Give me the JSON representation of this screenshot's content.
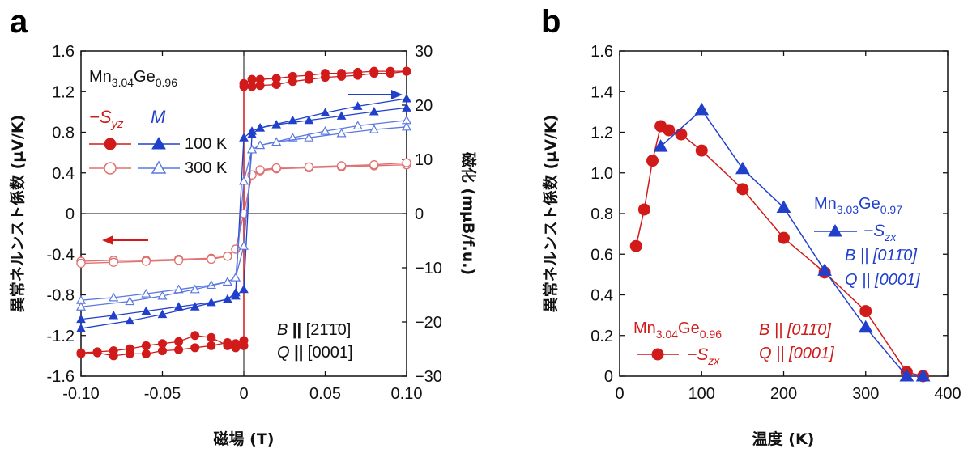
{
  "panel_a": {
    "label": "a",
    "sample": {
      "base1": "Mn",
      "sub1": "3.04",
      "base2": "Ge",
      "sub2": "0.96"
    },
    "legend": {
      "s_symbol": "−S",
      "s_sub": "yz",
      "m_symbol": "M",
      "row1": "100 K",
      "row2": "300 K"
    },
    "condition": {
      "b_sym": "B",
      "b_par": "||",
      "b_dir": "[2",
      "b_mid": "1̄1̄",
      "b_end": "0]",
      "q_sym": "Q",
      "q_par": "||",
      "q_dir": "[0001]"
    },
    "xlabel": "磁場 (T)",
    "ylabel_left": "異常ネルンスト係数 (µV/K)",
    "ylabel_right": "磁化 (mµB/f.u.)",
    "colors": {
      "red": "#d11a1a",
      "red_open": "#e07070",
      "blue": "#2040cc",
      "blue_open": "#5a78e0"
    }
  },
  "panel_b": {
    "label": "b",
    "xlabel": "温度 (K)",
    "ylabel": "異常ネルンスト係数 (µV/K)",
    "blue_sample": {
      "base1": "Mn",
      "sub1": "3.03",
      "base2": "Ge",
      "sub2": "0.97"
    },
    "blue_series": {
      "s_symbol": "−S",
      "s_sub": "zx"
    },
    "blue_cond": {
      "b_line": "B || [011̄0]",
      "q_line": "Q || [0001]"
    },
    "red_sample": {
      "base1": "Mn",
      "sub1": "3.04",
      "base2": "Ge",
      "sub2": "0.96"
    },
    "red_series": {
      "s_symbol": "−S",
      "s_sub": "zx"
    },
    "red_cond": {
      "b_line": "B || [011̄0]",
      "q_line": "Q || [0001]"
    }
  },
  "chart_data": [
    {
      "type": "line",
      "panel": "a",
      "x_ticks": [
        "-0.10",
        "-0.05",
        "0",
        "0.05",
        "0.10"
      ],
      "y_left_ticks": [
        "-1.6",
        "-1.2",
        "-0.8",
        "-0.4",
        "0",
        "0.4",
        "0.8",
        "1.2",
        "1.6"
      ],
      "y_right_ticks": [
        "-30",
        "-20",
        "-10",
        "0",
        "10",
        "20",
        "30"
      ],
      "xlim": [
        -0.1,
        0.1
      ],
      "ylim_left": [
        -1.6,
        1.6
      ],
      "ylim_right": [
        -30,
        30
      ],
      "series": [
        {
          "name": "100 K",
          "axis": "left",
          "marker": "filled-circle",
          "branch1": {
            "x": [
              -0.1,
              -0.09,
              -0.08,
              -0.07,
              -0.06,
              -0.05,
              -0.04,
              -0.03,
              -0.02,
              -0.01,
              -0.005,
              0.0,
              0.0,
              0.005,
              0.01,
              0.02,
              0.03,
              0.04,
              0.05,
              0.06,
              0.07,
              0.08,
              0.09,
              0.1
            ],
            "y": [
              -1.38,
              -1.37,
              -1.4,
              -1.38,
              -1.38,
              -1.35,
              -1.34,
              -1.32,
              -1.3,
              -1.27,
              -1.28,
              -1.25,
              1.28,
              1.32,
              1.32,
              1.33,
              1.35,
              1.36,
              1.38,
              1.38,
              1.39,
              1.4,
              1.4,
              1.4
            ]
          },
          "branch2": {
            "x": [
              0.1,
              0.09,
              0.08,
              0.07,
              0.06,
              0.05,
              0.04,
              0.03,
              0.02,
              0.01,
              0.005,
              0.0,
              0.0,
              -0.005,
              -0.01,
              -0.02,
              -0.03,
              -0.04,
              -0.05,
              -0.06,
              -0.07,
              -0.08,
              -0.09,
              -0.1
            ],
            "y": [
              1.4,
              1.38,
              1.38,
              1.36,
              1.35,
              1.34,
              1.32,
              1.3,
              1.27,
              1.26,
              1.25,
              1.25,
              -1.3,
              -1.32,
              -1.3,
              -1.22,
              -1.2,
              -1.26,
              -1.28,
              -1.3,
              -1.33,
              -1.35,
              -1.36,
              -1.37
            ]
          }
        },
        {
          "name": "300 K",
          "axis": "left",
          "marker": "open-circle",
          "branch1": {
            "x": [
              -0.1,
              -0.08,
              -0.06,
              -0.04,
              -0.02,
              -0.01,
              -0.005,
              0.0,
              0.005,
              0.01,
              0.02,
              0.04,
              0.06,
              0.08,
              0.1
            ],
            "y": [
              -0.47,
              -0.46,
              -0.46,
              -0.45,
              -0.44,
              -0.42,
              -0.35,
              0.0,
              0.38,
              0.42,
              0.44,
              0.45,
              0.46,
              0.47,
              0.48
            ]
          },
          "branch2": {
            "x": [
              0.1,
              0.08,
              0.06,
              0.04,
              0.02,
              0.01,
              0.005,
              0.0,
              -0.005,
              -0.01,
              -0.02,
              -0.04,
              -0.06,
              -0.08,
              -0.1
            ],
            "y": [
              0.5,
              0.48,
              0.47,
              0.46,
              0.45,
              0.43,
              0.38,
              0.0,
              -0.35,
              -0.42,
              -0.45,
              -0.46,
              -0.47,
              -0.48,
              -0.49
            ]
          }
        },
        {
          "name": "100 K",
          "axis": "right",
          "marker": "filled-triangle",
          "branch1": {
            "x": [
              -0.1,
              -0.08,
              -0.06,
              -0.04,
              -0.02,
              -0.01,
              -0.005,
              0.0,
              0.005,
              0.01,
              0.03,
              0.05,
              0.07,
              0.1
            ],
            "y": [
              -19.5,
              -18.8,
              -18.0,
              -17.2,
              -16.4,
              -15.8,
              -15.2,
              -14.0,
              14.6,
              15.8,
              17.2,
              18.6,
              19.8,
              21.2
            ]
          },
          "branch2": {
            "x": [
              0.1,
              0.08,
              0.06,
              0.04,
              0.02,
              0.01,
              0.005,
              0.0,
              -0.005,
              -0.01,
              -0.03,
              -0.05,
              -0.07,
              -0.1
            ],
            "y": [
              19.5,
              18.8,
              18.0,
              17.2,
              16.4,
              15.8,
              15.2,
              14.0,
              -14.6,
              -15.8,
              -17.2,
              -18.6,
              -19.8,
              -21.2
            ]
          }
        },
        {
          "name": "300 K",
          "axis": "right",
          "marker": "open-triangle",
          "branch1": {
            "x": [
              -0.1,
              -0.08,
              -0.06,
              -0.04,
              -0.02,
              -0.01,
              -0.005,
              0.0,
              0.005,
              0.01,
              0.03,
              0.05,
              0.07,
              0.1
            ],
            "y": [
              -16.0,
              -15.5,
              -14.8,
              -14.0,
              -13.2,
              -12.6,
              -11.8,
              -6.0,
              11.8,
              12.6,
              14.0,
              15.2,
              16.2,
              17.2
            ]
          },
          "branch2": {
            "x": [
              0.1,
              0.08,
              0.06,
              0.04,
              0.02,
              0.01,
              0.005,
              0.0,
              -0.005,
              -0.01,
              -0.03,
              -0.05,
              -0.07,
              -0.1
            ],
            "y": [
              16.0,
              15.5,
              14.8,
              14.0,
              13.2,
              12.6,
              11.8,
              6.0,
              -11.8,
              -12.6,
              -14.0,
              -15.2,
              -16.2,
              -17.2
            ]
          }
        }
      ]
    },
    {
      "type": "line",
      "panel": "b",
      "x_ticks": [
        "0",
        "100",
        "200",
        "300",
        "400"
      ],
      "y_ticks": [
        "0",
        "0.2",
        "0.4",
        "0.6",
        "0.8",
        "1.0",
        "1.2",
        "1.4",
        "1.6"
      ],
      "xlim": [
        0,
        400
      ],
      "ylim": [
        0,
        1.6
      ],
      "series": [
        {
          "name": "Mn3.03Ge0.97",
          "marker": "filled-triangle",
          "x": [
            50,
            100,
            150,
            200,
            250,
            300,
            350,
            370
          ],
          "y": [
            1.13,
            1.31,
            1.02,
            0.83,
            0.52,
            0.24,
            0.0,
            0.0
          ]
        },
        {
          "name": "Mn3.04Ge0.96",
          "marker": "filled-circle",
          "x": [
            20,
            30,
            40,
            50,
            60,
            75,
            100,
            150,
            200,
            250,
            300,
            350,
            370
          ],
          "y": [
            0.64,
            0.82,
            1.06,
            1.23,
            1.21,
            1.19,
            1.11,
            0.92,
            0.68,
            0.51,
            0.32,
            0.02,
            0.0
          ]
        }
      ]
    }
  ]
}
